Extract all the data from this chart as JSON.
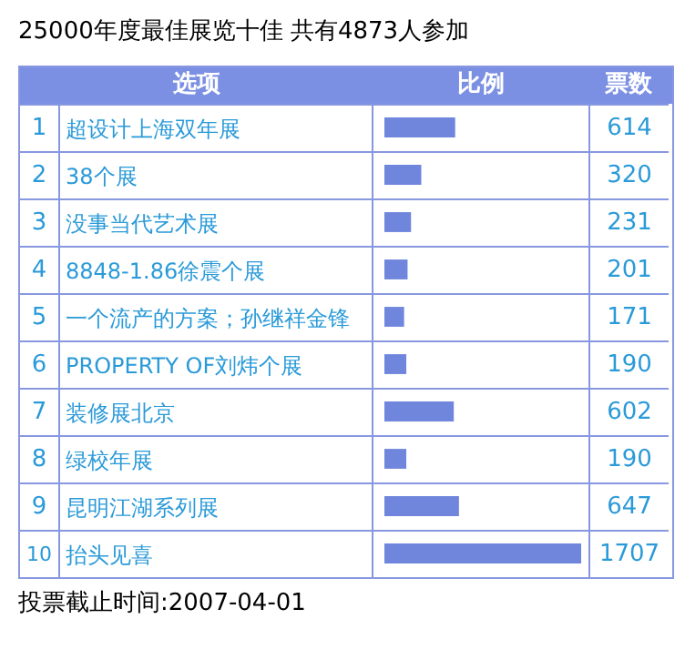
{
  "chart_data": {
    "type": "bar",
    "orientation": "horizontal",
    "title": "25000年度最佳展览十佳 共有4873人参加",
    "categories": [
      "超设计上海双年展",
      "38个展",
      "没事当代艺术展",
      "8848-1.86徐震个展",
      "一个流产的方案；孙继祥金锋",
      "PROPERTY OF刘炜个展",
      "装修展北京",
      "绿校年展",
      "昆明江湖系列展",
      "抬头见喜"
    ],
    "values": [
      614,
      320,
      231,
      201,
      171,
      190,
      602,
      190,
      647,
      1707
    ],
    "color": "#6f86dc",
    "data_labels": true,
    "legend": false,
    "annotations": [
      "选项",
      "比例",
      "票数",
      "投票截止时间:2007-04-01",
      "1",
      "2",
      "3",
      "4",
      "5",
      "6",
      "7",
      "8",
      "9",
      "10"
    ]
  }
}
